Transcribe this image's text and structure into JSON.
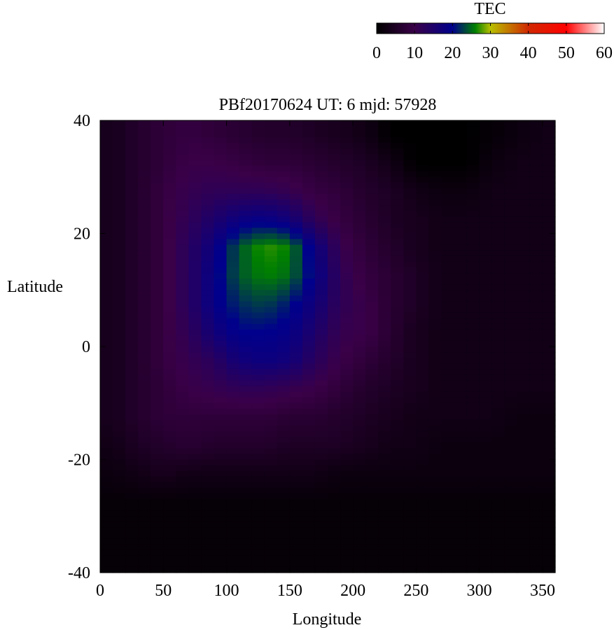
{
  "chart_data": {
    "type": "heatmap",
    "title": "PBf20170624  UT: 6  mjd: 57928",
    "xlabel": "Longitude",
    "ylabel": "Latitude",
    "xlim": [
      0,
      360
    ],
    "ylim": [
      -40,
      40
    ],
    "xticks": [
      "0",
      "50",
      "100",
      "150",
      "200",
      "250",
      "300",
      "350"
    ],
    "yticks": [
      "40",
      "20",
      "0",
      "-20",
      "-40"
    ],
    "colorbar": {
      "label": "TEC",
      "range": [
        0,
        60
      ],
      "ticks": [
        "0",
        "10",
        "20",
        "30",
        "40",
        "50",
        "60"
      ],
      "colormap": [
        {
          "value": 0,
          "color": "#000000"
        },
        {
          "value": 10,
          "color": "#3a0048"
        },
        {
          "value": 20,
          "color": "#00008c"
        },
        {
          "value": 26,
          "color": "#008000"
        },
        {
          "value": 30,
          "color": "#b8c000"
        },
        {
          "value": 40,
          "color": "#d02800"
        },
        {
          "value": 50,
          "color": "#ff0000"
        },
        {
          "value": 60,
          "color": "#ffffff"
        }
      ]
    },
    "lon": [
      10,
      30,
      50,
      70,
      90,
      110,
      130,
      150,
      170,
      190,
      210,
      230,
      250,
      270,
      290,
      310,
      330,
      350
    ],
    "lat": [
      37.5,
      32.5,
      27.5,
      22.5,
      17.5,
      12.5,
      7.5,
      2.5,
      -2.5,
      -7.5,
      -12.5,
      -17.5,
      -22.5,
      -27.5,
      -32.5,
      -37.5
    ],
    "values": [
      [
        4,
        6,
        8,
        9,
        8,
        7,
        6,
        6,
        5,
        4,
        3,
        0,
        0,
        0,
        0,
        1,
        2,
        3
      ],
      [
        4,
        6,
        8,
        10,
        10,
        9,
        8,
        8,
        7,
        6,
        5,
        3,
        0,
        0,
        0,
        2,
        3,
        3
      ],
      [
        4,
        6,
        9,
        11,
        12,
        12,
        12,
        11,
        9,
        8,
        6,
        5,
        3,
        2,
        2,
        3,
        3,
        3
      ],
      [
        4,
        6,
        9,
        12,
        15,
        18,
        19,
        17,
        12,
        9,
        7,
        5,
        4,
        3,
        3,
        3,
        3,
        3
      ],
      [
        4,
        6,
        9,
        13,
        18,
        24,
        27,
        26,
        18,
        11,
        8,
        6,
        4,
        3,
        3,
        3,
        3,
        3
      ],
      [
        4,
        6,
        9,
        13,
        19,
        24,
        26,
        25,
        19,
        12,
        9,
        7,
        5,
        3,
        3,
        3,
        3,
        3
      ],
      [
        4,
        6,
        9,
        13,
        19,
        22,
        23,
        21,
        17,
        12,
        10,
        7,
        5,
        3,
        3,
        3,
        3,
        3
      ],
      [
        4,
        6,
        9,
        12,
        17,
        20,
        20,
        19,
        15,
        11,
        10,
        7,
        4,
        3,
        3,
        3,
        3,
        3
      ],
      [
        4,
        6,
        9,
        11,
        13,
        17,
        18,
        17,
        13,
        10,
        8,
        6,
        4,
        3,
        3,
        3,
        3,
        3
      ],
      [
        4,
        6,
        8,
        10,
        11,
        12,
        12,
        11,
        10,
        8,
        6,
        5,
        4,
        3,
        3,
        3,
        3,
        3
      ],
      [
        4,
        6,
        8,
        8,
        8,
        8,
        8,
        7,
        7,
        6,
        5,
        4,
        3,
        3,
        3,
        3,
        2,
        2
      ],
      [
        3,
        5,
        6,
        7,
        6,
        6,
        6,
        5,
        5,
        5,
        4,
        3,
        3,
        2,
        2,
        2,
        2,
        2
      ],
      [
        2,
        3,
        4,
        3,
        3,
        3,
        3,
        3,
        3,
        2,
        2,
        2,
        2,
        2,
        2,
        2,
        2,
        2
      ],
      [
        1,
        1,
        1,
        1,
        1,
        1,
        1,
        1,
        1,
        1,
        1,
        1,
        1,
        1,
        1,
        1,
        1,
        1
      ],
      [
        1,
        1,
        1,
        1,
        1,
        1,
        1,
        1,
        1,
        1,
        1,
        1,
        1,
        1,
        1,
        1,
        1,
        1
      ],
      [
        1,
        1,
        1,
        1,
        1,
        1,
        1,
        1,
        1,
        1,
        1,
        1,
        1,
        1,
        1,
        1,
        1,
        1
      ]
    ]
  }
}
